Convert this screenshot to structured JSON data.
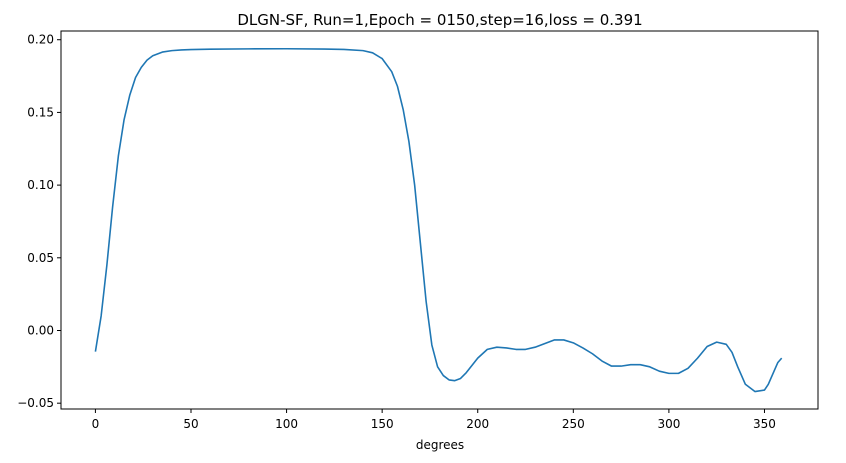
{
  "chart_data": {
    "type": "line",
    "title": "DLGN-SF, Run=1,Epoch = 0150,step=16,loss = 0.391",
    "xlabel": "degrees",
    "ylabel": "",
    "xlim": [
      -18,
      378
    ],
    "ylim": [
      -0.054,
      0.206
    ],
    "xticks": [
      0,
      50,
      100,
      150,
      200,
      250,
      300,
      350
    ],
    "yticks": [
      -0.05,
      0.0,
      0.05,
      0.1,
      0.15,
      0.2
    ],
    "ytick_labels": [
      "−0.05",
      "0.00",
      "0.05",
      "0.10",
      "0.15",
      "0.20"
    ],
    "xtick_labels": [
      "0",
      "50",
      "100",
      "150",
      "200",
      "250",
      "300",
      "350"
    ],
    "grid": false,
    "legend": "none",
    "series": [
      {
        "color": "#1f77b4",
        "x": [
          0,
          3,
          6,
          9,
          12,
          15,
          18,
          21,
          24,
          27,
          30,
          35,
          40,
          45,
          50,
          60,
          80,
          100,
          120,
          130,
          140,
          145,
          150,
          155,
          158,
          161,
          164,
          167,
          170,
          173,
          176,
          179,
          182,
          185,
          188,
          191,
          194,
          197,
          200,
          205,
          210,
          215,
          220,
          225,
          230,
          235,
          240,
          245,
          250,
          255,
          260,
          265,
          270,
          275,
          280,
          285,
          290,
          295,
          300,
          305,
          310,
          315,
          320,
          325,
          330,
          333,
          336,
          340,
          345,
          350,
          352,
          355,
          357,
          359
        ],
        "y": [
          -0.0145,
          0.01,
          0.045,
          0.085,
          0.12,
          0.145,
          0.162,
          0.174,
          0.181,
          0.186,
          0.189,
          0.1915,
          0.1925,
          0.193,
          0.1932,
          0.1935,
          0.1937,
          0.1938,
          0.1936,
          0.1933,
          0.1925,
          0.191,
          0.187,
          0.178,
          0.168,
          0.152,
          0.13,
          0.1,
          0.06,
          0.02,
          -0.01,
          -0.025,
          -0.031,
          -0.034,
          -0.0345,
          -0.033,
          -0.029,
          -0.024,
          -0.019,
          -0.013,
          -0.0115,
          -0.012,
          -0.013,
          -0.013,
          -0.0115,
          -0.009,
          -0.0065,
          -0.0065,
          -0.0085,
          -0.012,
          -0.016,
          -0.021,
          -0.0245,
          -0.0245,
          -0.0235,
          -0.0235,
          -0.025,
          -0.028,
          -0.0295,
          -0.0295,
          -0.026,
          -0.019,
          -0.011,
          -0.008,
          -0.0095,
          -0.015,
          -0.025,
          -0.037,
          -0.042,
          -0.041,
          -0.037,
          -0.028,
          -0.022,
          -0.019
        ]
      }
    ]
  }
}
